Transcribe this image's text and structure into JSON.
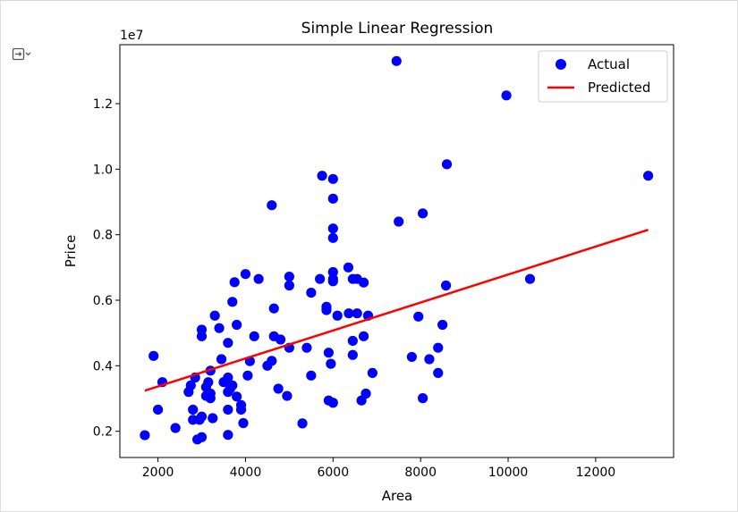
{
  "output_toggle_icon": "output-collapse-icon",
  "chart_data": {
    "type": "scatter",
    "title": "Simple Linear Regression",
    "xlabel": "Area",
    "ylabel": "Price",
    "y_offset_label": "1e7",
    "xlim": [
      1130,
      13780
    ],
    "ylim": [
      1200000,
      13800000
    ],
    "xticks": [
      2000,
      4000,
      6000,
      8000,
      10000,
      12000
    ],
    "xtick_labels": [
      "2000",
      "4000",
      "6000",
      "8000",
      "10000",
      "12000"
    ],
    "yticks": [
      2000000,
      4000000,
      6000000,
      8000000,
      10000000,
      12000000
    ],
    "ytick_labels": [
      "0.2",
      "0.4",
      "0.6",
      "0.8",
      "1.0",
      "1.2"
    ],
    "grid": false,
    "legend_position": "top-right",
    "colors": {
      "actual": "#0000ff",
      "predicted": "#ff0000"
    },
    "series": [
      {
        "name": "Actual",
        "kind": "scatter",
        "points": [
          [
            1700,
            1880000
          ],
          [
            1900,
            4300000
          ],
          [
            2000,
            2660000
          ],
          [
            2100,
            3500000
          ],
          [
            2400,
            2100000
          ],
          [
            2700,
            3200000
          ],
          [
            2750,
            3400000
          ],
          [
            2800,
            2350000
          ],
          [
            2800,
            2660000
          ],
          [
            2850,
            3640000
          ],
          [
            2900,
            1750000
          ],
          [
            2950,
            2350000
          ],
          [
            3000,
            1820000
          ],
          [
            3000,
            2450000
          ],
          [
            3000,
            4900000
          ],
          [
            3000,
            5100000
          ],
          [
            3100,
            3080000
          ],
          [
            3100,
            3350000
          ],
          [
            3150,
            3500000
          ],
          [
            3200,
            3850000
          ],
          [
            3200,
            3150000
          ],
          [
            3200,
            3010000
          ],
          [
            3250,
            2400000
          ],
          [
            3300,
            5530000
          ],
          [
            3400,
            5150000
          ],
          [
            3450,
            4200000
          ],
          [
            3500,
            3500000
          ],
          [
            3600,
            1890000
          ],
          [
            3600,
            2660000
          ],
          [
            3600,
            3640000
          ],
          [
            3600,
            4700000
          ],
          [
            3600,
            3200000
          ],
          [
            3650,
            3300000
          ],
          [
            3700,
            5950000
          ],
          [
            3700,
            3400000
          ],
          [
            3750,
            6550000
          ],
          [
            3800,
            3060000
          ],
          [
            3800,
            5250000
          ],
          [
            3900,
            2660000
          ],
          [
            3900,
            2800000
          ],
          [
            3950,
            2250000
          ],
          [
            4000,
            6800000
          ],
          [
            4050,
            3700000
          ],
          [
            4100,
            4140000
          ],
          [
            4200,
            4900000
          ],
          [
            4300,
            6650000
          ],
          [
            4500,
            4000000
          ],
          [
            4600,
            4150000
          ],
          [
            4600,
            8900000
          ],
          [
            4650,
            5750000
          ],
          [
            4650,
            4900000
          ],
          [
            4750,
            3300000
          ],
          [
            4800,
            4800000
          ],
          [
            4950,
            3080000
          ],
          [
            5000,
            4550000
          ],
          [
            5000,
            6450000
          ],
          [
            5000,
            6720000
          ],
          [
            5300,
            2240000
          ],
          [
            5400,
            4550000
          ],
          [
            5500,
            6230000
          ],
          [
            5500,
            3700000
          ],
          [
            5700,
            6650000
          ],
          [
            5750,
            9800000
          ],
          [
            5850,
            5700000
          ],
          [
            5850,
            5800000
          ],
          [
            5900,
            2940000
          ],
          [
            5900,
            4400000
          ],
          [
            5950,
            4060000
          ],
          [
            6000,
            2870000
          ],
          [
            6000,
            6580000
          ],
          [
            6000,
            6650000
          ],
          [
            6000,
            6860000
          ],
          [
            6000,
            7900000
          ],
          [
            6000,
            8190000
          ],
          [
            6000,
            9100000
          ],
          [
            6000,
            9700000
          ],
          [
            6100,
            5530000
          ],
          [
            6350,
            7000000
          ],
          [
            6360,
            5600000
          ],
          [
            6450,
            6650000
          ],
          [
            6450,
            4330000
          ],
          [
            6450,
            4760000
          ],
          [
            6550,
            5600000
          ],
          [
            6550,
            6650000
          ],
          [
            6650,
            2940000
          ],
          [
            6700,
            6540000
          ],
          [
            6700,
            4900000
          ],
          [
            6750,
            3150000
          ],
          [
            6800,
            5530000
          ],
          [
            6900,
            3780000
          ],
          [
            7450,
            13300000
          ],
          [
            7500,
            8400000
          ],
          [
            7800,
            4270000
          ],
          [
            7950,
            5500000
          ],
          [
            8050,
            3010000
          ],
          [
            8050,
            8650000
          ],
          [
            8200,
            4200000
          ],
          [
            8400,
            3780000
          ],
          [
            8400,
            4550000
          ],
          [
            8500,
            5250000
          ],
          [
            8580,
            6450000
          ],
          [
            8600,
            10150000
          ],
          [
            9960,
            12250000
          ],
          [
            10500,
            6650000
          ],
          [
            13200,
            9800000
          ]
        ]
      },
      {
        "name": "Predicted",
        "kind": "line",
        "points": [
          [
            1700,
            3240000
          ],
          [
            13200,
            8150000
          ]
        ]
      }
    ]
  }
}
